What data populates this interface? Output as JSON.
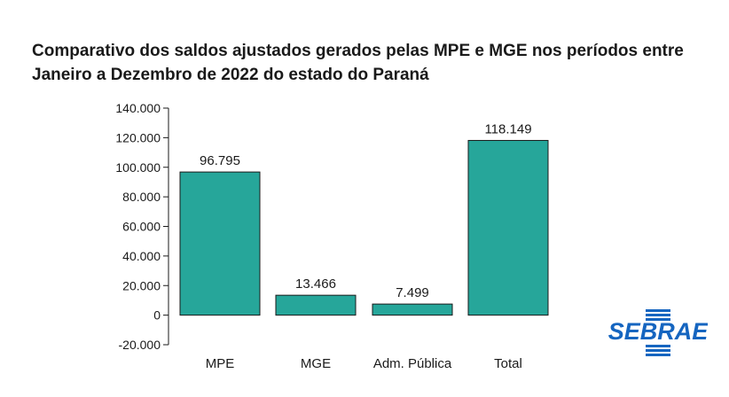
{
  "chart_data": {
    "type": "bar",
    "title": "Comparativo dos saldos ajustados gerados pelas MPE e MGE nos períodos entre Janeiro a Dezembro de 2022 do estado do Paraná",
    "categories": [
      "MPE",
      "MGE",
      "Adm. Pública",
      "Total"
    ],
    "values": [
      96795,
      13466,
      7499,
      118149
    ],
    "data_labels": [
      "96.795",
      "13.466",
      "7.499",
      "118.149"
    ],
    "yticks": [
      -20000,
      0,
      20000,
      40000,
      60000,
      80000,
      100000,
      120000,
      140000
    ],
    "ytick_labels": [
      "-20.000",
      "0",
      "20.000",
      "40.000",
      "60.000",
      "80.000",
      "100.000",
      "120.000",
      "140.000"
    ],
    "ylim": [
      -20000,
      140000
    ],
    "xlabel": "",
    "ylabel": "",
    "grid": false,
    "legend": "none",
    "bar_color": "#26a69a",
    "bar_edge_color": "#1a1a1a"
  },
  "logo": {
    "text": "SEBRAE",
    "color": "#1565c0"
  }
}
